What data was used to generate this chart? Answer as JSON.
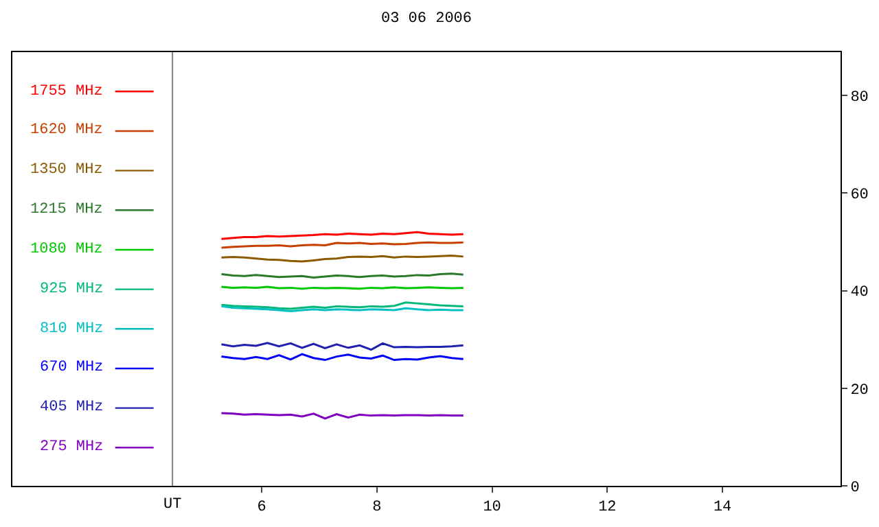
{
  "chart_data": {
    "type": "line",
    "title": "03 06 2006",
    "x": [
      5.3,
      5.5,
      5.7,
      5.9,
      6.1,
      6.3,
      6.5,
      6.7,
      6.9,
      7.1,
      7.3,
      7.5,
      7.7,
      7.9,
      8.1,
      8.3,
      8.5,
      8.7,
      8.9,
      9.1,
      9.3,
      9.5
    ],
    "series": [
      {
        "name": "1755 MHz",
        "color": "#ff0000",
        "values": [
          50.6,
          50.8,
          51.0,
          51.0,
          51.2,
          51.1,
          51.2,
          51.3,
          51.4,
          51.6,
          51.5,
          51.7,
          51.6,
          51.5,
          51.7,
          51.6,
          51.8,
          52.0,
          51.7,
          51.6,
          51.5,
          51.6
        ]
      },
      {
        "name": "1620 MHz",
        "color": "#c84000",
        "values": [
          48.8,
          49.0,
          49.1,
          49.2,
          49.2,
          49.3,
          49.1,
          49.3,
          49.4,
          49.3,
          49.8,
          49.7,
          49.8,
          49.6,
          49.7,
          49.5,
          49.6,
          49.8,
          49.9,
          49.8,
          49.8,
          49.9
        ]
      },
      {
        "name": "1350 MHz",
        "color": "#8b5a00",
        "values": [
          46.8,
          46.9,
          46.8,
          46.6,
          46.4,
          46.3,
          46.1,
          46.0,
          46.2,
          46.5,
          46.6,
          46.9,
          47.0,
          46.9,
          47.1,
          46.8,
          47.0,
          46.9,
          47.0,
          47.1,
          47.2,
          47.0
        ]
      },
      {
        "name": "1215 MHz",
        "color": "#2a7a2a",
        "values": [
          43.4,
          43.1,
          43.0,
          43.2,
          43.0,
          42.8,
          42.9,
          43.0,
          42.7,
          42.9,
          43.1,
          43.0,
          42.8,
          43.0,
          43.1,
          42.9,
          43.0,
          43.2,
          43.1,
          43.4,
          43.5,
          43.3
        ]
      },
      {
        "name": "1080 MHz",
        "color": "#00c800",
        "values": [
          40.8,
          40.6,
          40.7,
          40.6,
          40.8,
          40.5,
          40.6,
          40.4,
          40.6,
          40.5,
          40.6,
          40.5,
          40.4,
          40.6,
          40.5,
          40.7,
          40.5,
          40.6,
          40.7,
          40.6,
          40.5,
          40.6
        ]
      },
      {
        "name": "925 MHz",
        "color": "#00b878",
        "values": [
          37.1,
          36.9,
          36.8,
          36.7,
          36.6,
          36.4,
          36.3,
          36.5,
          36.7,
          36.5,
          36.8,
          36.7,
          36.6,
          36.8,
          36.7,
          36.9,
          37.6,
          37.4,
          37.2,
          37.0,
          36.9,
          36.8
        ]
      },
      {
        "name": "810 MHz",
        "color": "#00c0c0",
        "values": [
          36.8,
          36.5,
          36.4,
          36.3,
          36.2,
          36.0,
          35.8,
          36.0,
          36.2,
          36.0,
          36.2,
          36.1,
          36.0,
          36.2,
          36.1,
          36.0,
          36.4,
          36.2,
          36.0,
          36.1,
          36.0,
          36.0
        ]
      },
      {
        "name": "670 MHz",
        "color": "#0000ff",
        "values": [
          26.5,
          26.2,
          26.0,
          26.4,
          26.0,
          26.8,
          25.9,
          27.0,
          26.2,
          25.8,
          26.5,
          26.9,
          26.3,
          26.1,
          26.7,
          25.8,
          26.0,
          25.9,
          26.3,
          26.6,
          26.2,
          26.0
        ]
      },
      {
        "name": "405 MHz",
        "color": "#2020b0",
        "values": [
          29.0,
          28.6,
          28.9,
          28.7,
          29.3,
          28.6,
          29.2,
          28.3,
          29.1,
          28.2,
          29.0,
          28.3,
          28.8,
          27.9,
          29.2,
          28.4,
          28.5,
          28.4,
          28.5,
          28.5,
          28.6,
          28.8
        ]
      },
      {
        "name": "275 MHz",
        "color": "#8000c0",
        "values": [
          14.9,
          14.8,
          14.6,
          14.7,
          14.6,
          14.5,
          14.6,
          14.2,
          14.8,
          13.8,
          14.7,
          14.0,
          14.6,
          14.4,
          14.5,
          14.4,
          14.5,
          14.5,
          14.4,
          14.5,
          14.4,
          14.4
        ]
      }
    ],
    "xlim": [
      1.67,
      16.05
    ],
    "xticks": [
      6,
      8,
      10,
      12,
      14
    ],
    "ylim": [
      0,
      88.9
    ],
    "yticks": [
      0,
      20,
      40,
      60,
      80
    ],
    "ref_lines": [
      {
        "axis": "x",
        "value": 4.45,
        "label": "UT",
        "color": "#808080"
      }
    ],
    "legend": "left",
    "line_style": "solid",
    "marker": "none"
  }
}
